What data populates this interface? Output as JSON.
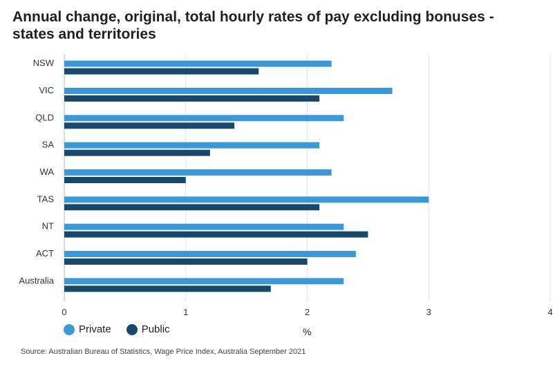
{
  "chart_data": {
    "type": "bar",
    "orientation": "horizontal",
    "title": "Annual change, original, total hourly rates of pay excluding bonuses - states and territories",
    "categories": [
      "NSW",
      "VIC",
      "QLD",
      "SA",
      "WA",
      "TAS",
      "NT",
      "ACT",
      "Australia"
    ],
    "series": [
      {
        "name": "Private",
        "color": "#3a9ad9",
        "values": [
          2.2,
          2.7,
          2.3,
          2.1,
          2.2,
          3.0,
          2.3,
          2.4,
          2.3
        ]
      },
      {
        "name": "Public",
        "color": "#17496f",
        "values": [
          1.6,
          2.1,
          1.4,
          1.2,
          1.0,
          2.1,
          2.5,
          2.0,
          1.7
        ]
      }
    ],
    "xlabel": "%",
    "xlim": [
      0,
      4
    ],
    "xticks": [
      0,
      1,
      2,
      3,
      4
    ],
    "grid": true,
    "legend_position": "bottom-left",
    "source": "Source: Australian Bureau of Statistics, Wage Price Index, Australia September 2021"
  }
}
